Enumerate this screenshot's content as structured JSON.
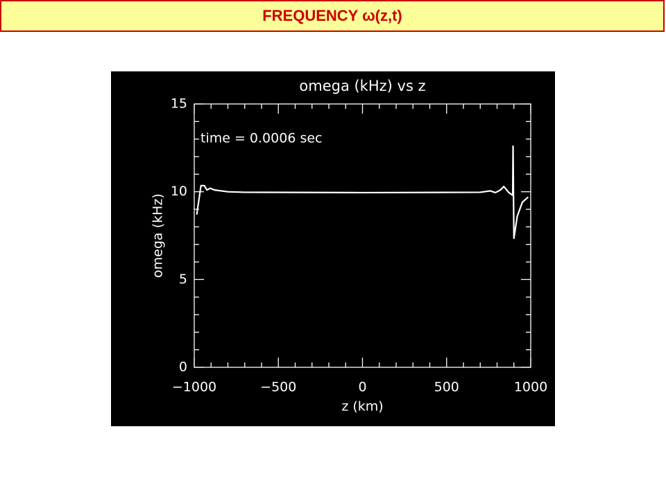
{
  "header": {
    "title": "FREQUENCY ω(z,t)"
  },
  "chart_data": {
    "type": "line",
    "title": "omega (kHz) vs z",
    "x_label": "z (km)",
    "y_label": "omega (kHz)",
    "annotation": "time =  0.0006 sec",
    "x": [
      -985,
      -960,
      -940,
      -925,
      -905,
      -880,
      -800,
      -700,
      0,
      700,
      760,
      790,
      820,
      840,
      870,
      893,
      895,
      900,
      920,
      950,
      985
    ],
    "series": [
      {
        "color": "#ffffff",
        "values": [
          8.7,
          10.35,
          10.35,
          10.1,
          10.2,
          10.1,
          10.0,
          9.97,
          9.95,
          9.97,
          10.05,
          9.95,
          10.1,
          10.3,
          9.95,
          9.8,
          12.6,
          7.35,
          8.6,
          9.4,
          9.7
        ]
      }
    ],
    "xlim": [
      -1000,
      1000
    ],
    "xticks": [
      {
        "value": -1000,
        "label": "−1000"
      },
      {
        "value": -500,
        "label": "−500"
      },
      0,
      500,
      1000
    ],
    "xminorticks": [
      -900,
      -800,
      -700,
      -600,
      -400,
      -300,
      -200,
      -100,
      100,
      200,
      300,
      400,
      600,
      700,
      800,
      900
    ],
    "ylim": [
      0,
      15
    ],
    "yticks": [
      0,
      5,
      10,
      15
    ],
    "yminorticks": [
      1,
      2,
      3,
      4,
      6,
      7,
      8,
      9,
      11,
      12,
      13,
      14
    ],
    "grid": false
  }
}
